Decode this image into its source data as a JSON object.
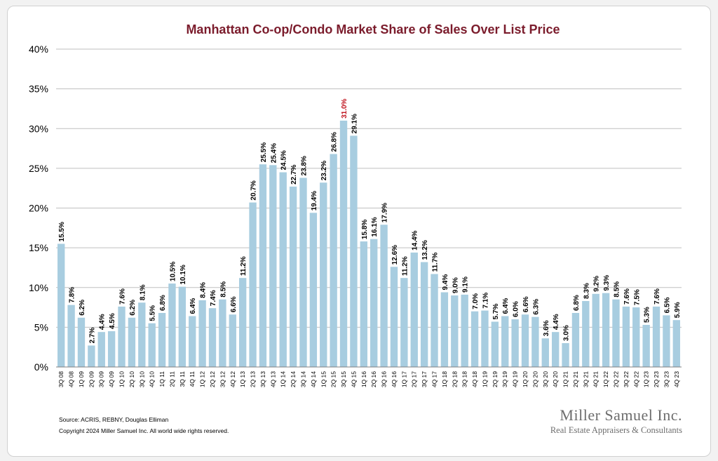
{
  "colors": {
    "title": "#7b1c2c",
    "bar": "#a8cde0",
    "highlight_label": "#c0141e",
    "text": "#000000",
    "grid": "#bfbfbf",
    "logo": "#6d6d6d"
  },
  "footer": {
    "source": "Source: ACRIS, REBNY, Douglas Elliman",
    "copyright": "Copyright 2024 Miller Samuel Inc.  All world wide rights reserved."
  },
  "logo": {
    "name": "Miller Samuel Inc.",
    "tagline": "Real Estate Appraisers & Consultants"
  },
  "chart_data": {
    "type": "bar",
    "title": "Manhattan Co-op/Condo Market Share of Sales Over List Price",
    "xlabel": "",
    "ylabel": "",
    "ylim": [
      0,
      40
    ],
    "yticks": [
      "0%",
      "5%",
      "10%",
      "15%",
      "20%",
      "25%",
      "30%",
      "35%",
      "40%"
    ],
    "grid": true,
    "highlight": "3Q 15",
    "categories": [
      "3Q 08",
      "4Q 08",
      "1Q 09",
      "2Q 09",
      "3Q 09",
      "4Q 09",
      "1Q 10",
      "2Q 10",
      "3Q 10",
      "4Q 10",
      "1Q 11",
      "2Q 11",
      "3Q 11",
      "4Q 11",
      "1Q 12",
      "2Q 12",
      "3Q 12",
      "4Q 12",
      "1Q 13",
      "2Q 13",
      "3Q 13",
      "4Q 13",
      "1Q 14",
      "2Q 14",
      "3Q 14",
      "4Q 14",
      "1Q 15",
      "2Q 15",
      "3Q 15",
      "4Q 15",
      "1Q 16",
      "2Q 16",
      "3Q 16",
      "4Q 16",
      "1Q 17",
      "2Q 17",
      "3Q 17",
      "4Q 17",
      "1Q 18",
      "2Q 18",
      "3Q 18",
      "4Q 18",
      "1Q 19",
      "2Q 19",
      "3Q 19",
      "4Q 19",
      "1Q 20",
      "2Q 20",
      "3Q 20",
      "4Q 20",
      "1Q 21",
      "2Q 21",
      "3Q 21",
      "4Q 21",
      "1Q 22",
      "2Q 22",
      "3Q 22",
      "4Q 22",
      "1Q 23",
      "2Q 23",
      "3Q 23",
      "4Q 23"
    ],
    "values": [
      15.5,
      7.8,
      6.2,
      2.7,
      4.4,
      4.5,
      7.6,
      6.2,
      8.1,
      5.5,
      6.8,
      10.5,
      10.1,
      6.4,
      8.4,
      7.4,
      8.5,
      6.6,
      11.2,
      20.7,
      25.5,
      25.4,
      24.5,
      22.7,
      23.8,
      19.4,
      23.2,
      26.8,
      31.0,
      29.1,
      15.8,
      16.1,
      17.9,
      12.6,
      11.2,
      14.4,
      13.2,
      11.7,
      9.4,
      9.0,
      9.1,
      7.0,
      7.1,
      5.7,
      6.4,
      6.0,
      6.6,
      6.3,
      3.6,
      4.4,
      3.0,
      6.8,
      8.3,
      9.2,
      9.3,
      8.5,
      7.6,
      7.5,
      5.3,
      7.6,
      6.5,
      5.9
    ],
    "labels": [
      "15.5%",
      "7.8%",
      "6.2%",
      "2.7%",
      "4.4%",
      "4.5%",
      "7.6%",
      "6.2%",
      "8.1%",
      "5.5%",
      "6.8%",
      "10.5%",
      "10.1%",
      "6.4%",
      "8.4%",
      "7.4%",
      "8.5%",
      "6.6%",
      "11.2%",
      "20.7%",
      "25.5%",
      "25.4%",
      "24.5%",
      "22.7%",
      "23.8%",
      "19.4%",
      "23.2%",
      "26.8%",
      "31.0%",
      "29.1%",
      "15.8%",
      "16.1%",
      "17.9%",
      "12.6%",
      "11.2%",
      "14.4%",
      "13.2%",
      "11.7%",
      "9.4%",
      "9.0%",
      "9.1%",
      "7.0%",
      "7.1%",
      "5.7%",
      "6.4%",
      "6.0%",
      "6.6%",
      "6.3%",
      "3.6%",
      "4.4%",
      "3.0%",
      "6.8%",
      "8.3%",
      "9.2%",
      "9.3%",
      "8.5%",
      "7.6%",
      "7.5%",
      "5.3%",
      "7.6%",
      "6.5%",
      "5.9%"
    ]
  }
}
